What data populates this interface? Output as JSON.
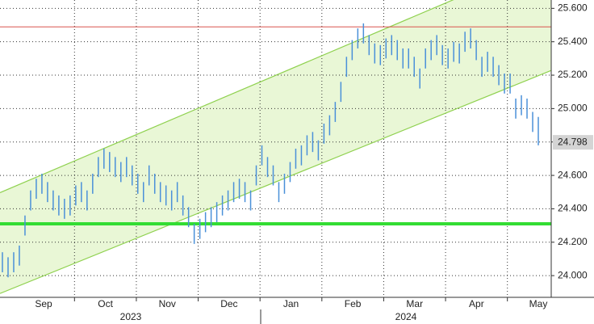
{
  "chart_data": {
    "type": "ohlc",
    "color": "#4a90d9",
    "lows": [
      24.02,
      23.99,
      24.02,
      24.06,
      24.24,
      24.39,
      24.46,
      24.49,
      24.44,
      24.39,
      24.36,
      24.34,
      24.36,
      24.42,
      24.44,
      24.39,
      24.49,
      24.59,
      24.64,
      24.62,
      24.59,
      24.56,
      24.59,
      24.54,
      24.49,
      24.44,
      24.54,
      24.49,
      24.44,
      24.42,
      24.39,
      24.44,
      24.36,
      24.29,
      24.19,
      24.22,
      24.26,
      24.29,
      24.32,
      24.36,
      24.39,
      24.44,
      24.46,
      24.44,
      24.39,
      24.54,
      24.66,
      24.59,
      24.54,
      24.44,
      24.49,
      24.56,
      24.64,
      24.66,
      24.72,
      24.74,
      24.69,
      24.79,
      24.84,
      24.92,
      25.04,
      25.19,
      25.29,
      25.36,
      25.39,
      25.32,
      25.27,
      25.26,
      25.3,
      25.32,
      25.29,
      25.24,
      25.24,
      25.19,
      25.12,
      25.24,
      25.29,
      25.32,
      25.26,
      25.24,
      25.28,
      25.27,
      25.34,
      25.36,
      25.29,
      25.19,
      25.22,
      25.19,
      25.14,
      25.09,
      25.09,
      24.94,
      24.96,
      24.94,
      24.86,
      24.78
    ],
    "highs": [
      24.14,
      24.11,
      24.14,
      24.18,
      24.36,
      24.51,
      24.58,
      24.61,
      24.56,
      24.51,
      24.48,
      24.46,
      24.48,
      24.54,
      24.56,
      24.51,
      24.61,
      24.71,
      24.76,
      24.74,
      24.71,
      24.68,
      24.71,
      24.66,
      24.61,
      24.56,
      24.66,
      24.61,
      24.56,
      24.54,
      24.51,
      24.56,
      24.48,
      24.41,
      24.31,
      24.34,
      24.38,
      24.41,
      24.44,
      24.48,
      24.51,
      24.56,
      24.58,
      24.56,
      24.51,
      24.66,
      24.78,
      24.71,
      24.66,
      24.56,
      24.61,
      24.68,
      24.76,
      24.78,
      24.84,
      24.86,
      24.81,
      24.91,
      24.96,
      25.04,
      25.16,
      25.31,
      25.41,
      25.48,
      25.51,
      25.44,
      25.39,
      25.38,
      25.42,
      25.44,
      25.41,
      25.36,
      25.36,
      25.31,
      25.24,
      25.36,
      25.41,
      25.44,
      25.38,
      25.36,
      25.4,
      25.39,
      25.46,
      25.48,
      25.41,
      25.31,
      25.34,
      25.31,
      25.26,
      25.21,
      25.21,
      25.06,
      25.08,
      25.06,
      24.98,
      24.95
    ],
    "last_price": {
      "value": 24.798,
      "label": "24.798"
    },
    "channel": {
      "color": "#8fd14f",
      "fill": "#e9f7d6",
      "upper": [
        24.503,
        25.868
      ],
      "lower": [
        23.899,
        25.197
      ]
    },
    "reference_lines": [
      {
        "value": 25.489,
        "color": "#d9534f"
      },
      {
        "value": 24.31,
        "color": "#33dd33"
      }
    ],
    "months": [
      "Sep",
      "Oct",
      "Nov",
      "Dec",
      "Jan",
      "Feb",
      "Mar",
      "Apr",
      "May"
    ],
    "years": [
      "2023",
      "2024"
    ],
    "ylim": [
      23.87,
      25.65
    ],
    "yticks": [
      {
        "value": 24.0,
        "label": "24.000"
      },
      {
        "value": 24.2,
        "label": "24.200"
      },
      {
        "value": 24.4,
        "label": "24.400"
      },
      {
        "value": 24.6,
        "label": "24.600"
      },
      {
        "value": 24.8,
        "label": "24.800"
      },
      {
        "value": 25.0,
        "label": "25.000"
      },
      {
        "value": 25.2,
        "label": "25.200"
      },
      {
        "value": 25.4,
        "label": "25.400"
      },
      {
        "value": 25.6,
        "label": "25.600"
      }
    ],
    "grid": true
  }
}
